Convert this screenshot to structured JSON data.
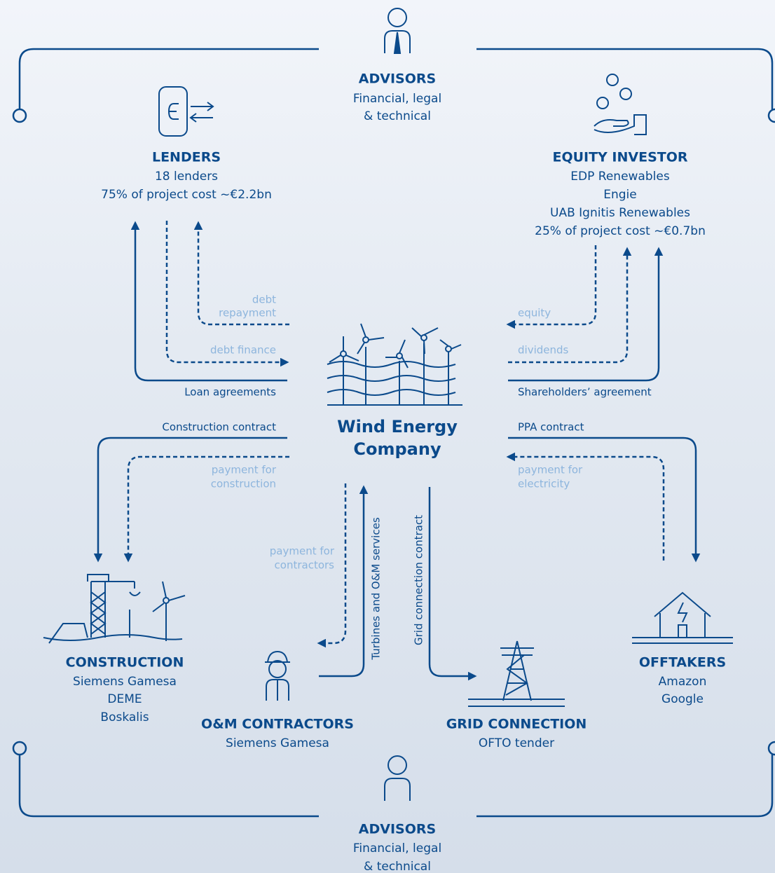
{
  "advisors_top": {
    "title": "ADVISORS",
    "lines": [
      "Financial, legal",
      "& technical"
    ]
  },
  "lenders": {
    "title": "LENDERS",
    "lines": [
      "18 lenders",
      "75% of project cost ~€2.2bn"
    ]
  },
  "equity_investor": {
    "title": "EQUITY INVESTOR",
    "lines": [
      "EDP Renewables",
      "Engie",
      "UAB Ignitis Renewables",
      "25% of project cost ~€0.7bn"
    ]
  },
  "center": {
    "lines": [
      "Wind Energy",
      "Company"
    ]
  },
  "construction": {
    "title": "CONSTRUCTION",
    "lines": [
      "Siemens Gamesa",
      "DEME",
      "Boskalis"
    ]
  },
  "om_contractors": {
    "title": "O&M CONTRACTORS",
    "lines": [
      "Siemens Gamesa"
    ]
  },
  "grid_connection": {
    "title": "GRID CONNECTION",
    "lines": [
      "OFTO tender"
    ]
  },
  "offtakers": {
    "title": "OFFTAKERS",
    "lines": [
      "Amazon",
      "Google"
    ]
  },
  "advisors_bottom": {
    "title": "ADVISORS",
    "lines": [
      "Financial, legal",
      "& technical"
    ]
  },
  "flows": {
    "debt_repayment": [
      "debt",
      "repayment"
    ],
    "debt_finance": "debt finance",
    "loan_agreements": "Loan agreements",
    "equity": "equity",
    "dividends": "dividends",
    "shareholders_agreement": "Shareholders’ agreement",
    "construction_contract": "Construction contract",
    "payment_for_construction": [
      "payment for",
      "construction"
    ],
    "ppa_contract": "PPA contract",
    "payment_for_electricity": [
      "payment for",
      "electricity"
    ],
    "payment_for_contractors": [
      "payment for",
      "contractors"
    ],
    "turbines_om_services": "Turbines and O&M services",
    "grid_connection_contract": "Grid connection contract"
  }
}
